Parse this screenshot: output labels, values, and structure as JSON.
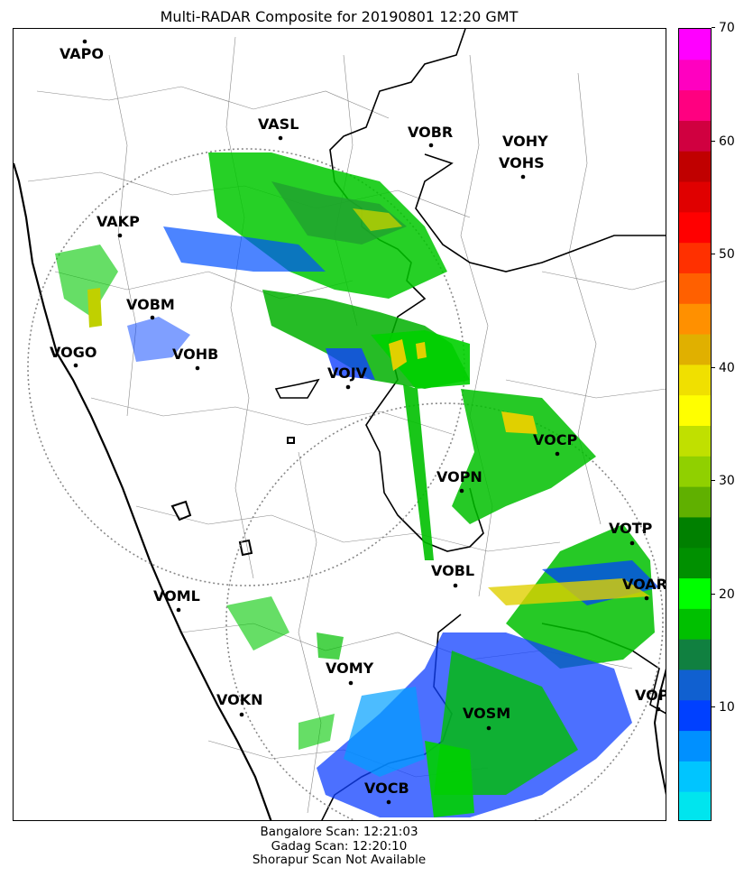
{
  "title": "Multi-RADAR Composite for 20190801 12:20 GMT",
  "footer": {
    "line1": "Bangalore Scan: 12:21:03",
    "line2": "Gadag Scan: 12:20:10",
    "line3": "Shorapur Scan Not Available"
  },
  "colorbar": {
    "min": 0,
    "max": 70,
    "ticks": [
      10,
      20,
      30,
      40,
      50,
      60,
      70
    ],
    "tick_labels": [
      "10",
      "20",
      "30",
      "40",
      "50",
      "60",
      "70"
    ],
    "colors": [
      "#00e5ee",
      "#00c5ff",
      "#0090ff",
      "#0040ff",
      "#1060d0",
      "#108040",
      "#00c000",
      "#00ff00",
      "#009000",
      "#008000",
      "#60b000",
      "#90d000",
      "#c0e000",
      "#ffff00",
      "#f0e000",
      "#e0b000",
      "#ff9000",
      "#ff6000",
      "#ff3000",
      "#ff0000",
      "#e00000",
      "#c00000",
      "#d00040",
      "#ff0080",
      "#ff00c0",
      "#ff00ff"
    ]
  },
  "stations": [
    {
      "code": "VAPO"
    },
    {
      "code": "VASL"
    },
    {
      "code": "VOBR"
    },
    {
      "code": "VOHY"
    },
    {
      "code": "VOHS"
    },
    {
      "code": "VAKP"
    },
    {
      "code": "VOBM"
    },
    {
      "code": "VOGO"
    },
    {
      "code": "VOHB"
    },
    {
      "code": "VOJV"
    },
    {
      "code": "VOCP"
    },
    {
      "code": "VOPN"
    },
    {
      "code": "VOTP"
    },
    {
      "code": "VOBL"
    },
    {
      "code": "VOAR"
    },
    {
      "code": "VOML"
    },
    {
      "code": "VOMY"
    },
    {
      "code": "VOKN"
    },
    {
      "code": "VOPC"
    },
    {
      "code": "VOSM"
    },
    {
      "code": "VOCB"
    }
  ]
}
